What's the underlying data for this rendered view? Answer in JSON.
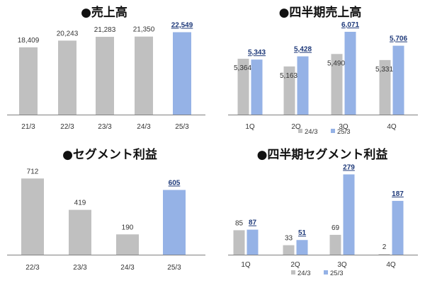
{
  "colors": {
    "gray": "#c0c0c0",
    "blue": "#95b2e6",
    "axis": "#808080",
    "bullet": "#111111"
  },
  "chart_data": [
    {
      "type": "bar",
      "title": "●売上高",
      "categories": [
        "21/3",
        "22/3",
        "23/3",
        "24/3",
        "25/3"
      ],
      "values": [
        18409,
        20243,
        21283,
        21350,
        22549
      ],
      "labels": [
        "18,409",
        "20,243",
        "21,283",
        "21,350",
        "22,549"
      ],
      "highlight_last": true,
      "ylim": [
        0,
        24000
      ]
    },
    {
      "type": "bar",
      "title": "●四半期売上高",
      "categories": [
        "1Q",
        "2Q",
        "3Q",
        "4Q"
      ],
      "series": [
        {
          "name": "24/3",
          "values": [
            5364,
            5163,
            5490,
            5331
          ],
          "labels": [
            "5,364",
            "5,163",
            "5,490",
            "5,331"
          ]
        },
        {
          "name": "25/3",
          "values": [
            5343,
            5428,
            6071,
            5706
          ],
          "labels": [
            "5,343",
            "5,428",
            "6,071",
            "5,706"
          ]
        }
      ],
      "ylim": [
        3900,
        6200
      ],
      "legend": "bottom-right"
    },
    {
      "type": "bar",
      "title": "●セグメント利益",
      "categories": [
        "22/3",
        "23/3",
        "24/3",
        "25/3"
      ],
      "values": [
        712,
        419,
        190,
        605
      ],
      "labels": [
        "712",
        "419",
        "190",
        "605"
      ],
      "highlight_last": true,
      "ylim": [
        0,
        780
      ]
    },
    {
      "type": "bar",
      "title": "●四半期セグメント利益",
      "categories": [
        "1Q",
        "2Q",
        "3Q",
        "4Q"
      ],
      "series": [
        {
          "name": "24/3",
          "values": [
            85,
            33,
            69,
            2
          ],
          "labels": [
            "85",
            "33",
            "69",
            "2"
          ]
        },
        {
          "name": "25/3",
          "values": [
            87,
            51,
            279,
            187
          ],
          "labels": [
            "87",
            "51",
            "279",
            "187"
          ]
        }
      ],
      "ylim": [
        0,
        290
      ],
      "legend": "bottom-right"
    }
  ]
}
